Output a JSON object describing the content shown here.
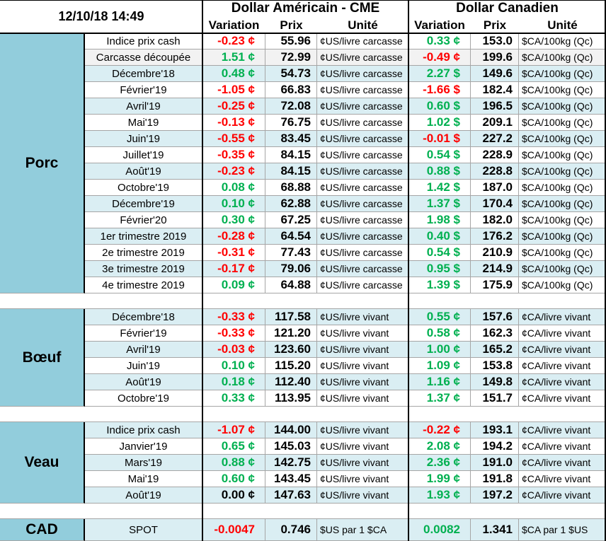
{
  "header": {
    "timestamp": "12/10/18 14:49",
    "usd_title": "Dollar Américain - CME",
    "cad_title": "Dollar Canadien",
    "usd_columns": [
      "Variation",
      "Prix",
      "Unité"
    ],
    "cad_columns": [
      "Variation",
      "Prix",
      "Unité"
    ]
  },
  "groups": [
    {
      "name": "Porc",
      "rows": [
        [
          "Indice prix cash",
          "-0.23 ¢",
          "55.96",
          "¢US/livre carcasse",
          "0.33 ¢",
          "153.0",
          "$CA/100kg (Qc)"
        ],
        [
          "Carcasse découpée",
          "1.51 ¢",
          "72.99",
          "¢US/livre carcasse",
          "-0.49 ¢",
          "199.6",
          "$CA/100kg (Qc)"
        ],
        [
          "Décembre'18",
          "0.48 ¢",
          "54.73",
          "¢US/livre carcasse",
          "2.27 $",
          "149.6",
          "$CA/100kg (Qc)"
        ],
        [
          "Février'19",
          "-1.05 ¢",
          "66.83",
          "¢US/livre carcasse",
          "-1.66 $",
          "182.4",
          "$CA/100kg (Qc)"
        ],
        [
          "Avril'19",
          "-0.25 ¢",
          "72.08",
          "¢US/livre carcasse",
          "0.60 $",
          "196.5",
          "$CA/100kg (Qc)"
        ],
        [
          "Mai'19",
          "-0.13 ¢",
          "76.75",
          "¢US/livre carcasse",
          "1.02 $",
          "209.1",
          "$CA/100kg (Qc)"
        ],
        [
          "Juin'19",
          "-0.55 ¢",
          "83.45",
          "¢US/livre carcasse",
          "-0.01 $",
          "227.2",
          "$CA/100kg (Qc)"
        ],
        [
          "Juillet'19",
          "-0.35 ¢",
          "84.15",
          "¢US/livre carcasse",
          "0.54 $",
          "228.9",
          "$CA/100kg (Qc)"
        ],
        [
          "Août'19",
          "-0.23 ¢",
          "84.15",
          "¢US/livre carcasse",
          "0.88 $",
          "228.8",
          "$CA/100kg (Qc)"
        ],
        [
          "Octobre'19",
          "0.08 ¢",
          "68.88",
          "¢US/livre carcasse",
          "1.42 $",
          "187.0",
          "$CA/100kg (Qc)"
        ],
        [
          "Décembre'19",
          "0.10 ¢",
          "62.88",
          "¢US/livre carcasse",
          "1.37 $",
          "170.4",
          "$CA/100kg (Qc)"
        ],
        [
          "Février'20",
          "0.30 ¢",
          "67.25",
          "¢US/livre carcasse",
          "1.98 $",
          "182.0",
          "$CA/100kg (Qc)"
        ],
        [
          "1er trimestre 2019",
          "-0.28 ¢",
          "64.54",
          "¢US/livre carcasse",
          "0.40 $",
          "176.2",
          "$CA/100kg (Qc)"
        ],
        [
          "2e trimestre 2019",
          "-0.31 ¢",
          "77.43",
          "¢US/livre carcasse",
          "0.54 $",
          "210.9",
          "$CA/100kg (Qc)"
        ],
        [
          "3e trimestre 2019",
          "-0.17 ¢",
          "79.06",
          "¢US/livre carcasse",
          "0.95 $",
          "214.9",
          "$CA/100kg (Qc)"
        ],
        [
          "4e trimestre 2019",
          "0.09 ¢",
          "64.88",
          "¢US/livre carcasse",
          "1.39 $",
          "175.9",
          "$CA/100kg (Qc)"
        ]
      ]
    },
    {
      "name": "Bœuf",
      "rows": [
        [
          "Décembre'18",
          "-0.33 ¢",
          "117.58",
          "¢US/livre vivant",
          "0.55 ¢",
          "157.6",
          "¢CA/livre vivant"
        ],
        [
          "Février'19",
          "-0.33 ¢",
          "121.20",
          "¢US/livre vivant",
          "0.58 ¢",
          "162.3",
          "¢CA/livre vivant"
        ],
        [
          "Avril'19",
          "-0.03 ¢",
          "123.60",
          "¢US/livre vivant",
          "1.00 ¢",
          "165.2",
          "¢CA/livre vivant"
        ],
        [
          "Juin'19",
          "0.10 ¢",
          "115.20",
          "¢US/livre vivant",
          "1.09 ¢",
          "153.8",
          "¢CA/livre vivant"
        ],
        [
          "Août'19",
          "0.18 ¢",
          "112.40",
          "¢US/livre vivant",
          "1.16 ¢",
          "149.8",
          "¢CA/livre vivant"
        ],
        [
          "Octobre'19",
          "0.33 ¢",
          "113.95",
          "¢US/livre vivant",
          "1.37 ¢",
          "151.7",
          "¢CA/livre vivant"
        ]
      ]
    },
    {
      "name": "Veau",
      "rows": [
        [
          "Indice prix cash",
          "-1.07 ¢",
          "144.00",
          "¢US/livre vivant",
          "-0.22 ¢",
          "193.1",
          "¢CA/livre vivant"
        ],
        [
          "Janvier'19",
          "0.65 ¢",
          "145.03",
          "¢US/livre vivant",
          "2.08 ¢",
          "194.2",
          "¢CA/livre vivant"
        ],
        [
          "Mars'19",
          "0.88 ¢",
          "142.75",
          "¢US/livre vivant",
          "2.36 ¢",
          "191.0",
          "¢CA/livre vivant"
        ],
        [
          "Mai'19",
          "0.60 ¢",
          "143.45",
          "¢US/livre vivant",
          "1.99 ¢",
          "191.8",
          "¢CA/livre vivant"
        ],
        [
          "Août'19",
          "0.00 ¢",
          "147.63",
          "¢US/livre vivant",
          "1.93 ¢",
          "197.2",
          "¢CA/livre vivant"
        ]
      ]
    }
  ],
  "cad": {
    "name": "CAD",
    "row": [
      "SPOT",
      "-0.0047",
      "0.746",
      "$US par 1 $CA",
      "0.0082",
      "1.341",
      "$CA par 1 $US"
    ]
  }
}
